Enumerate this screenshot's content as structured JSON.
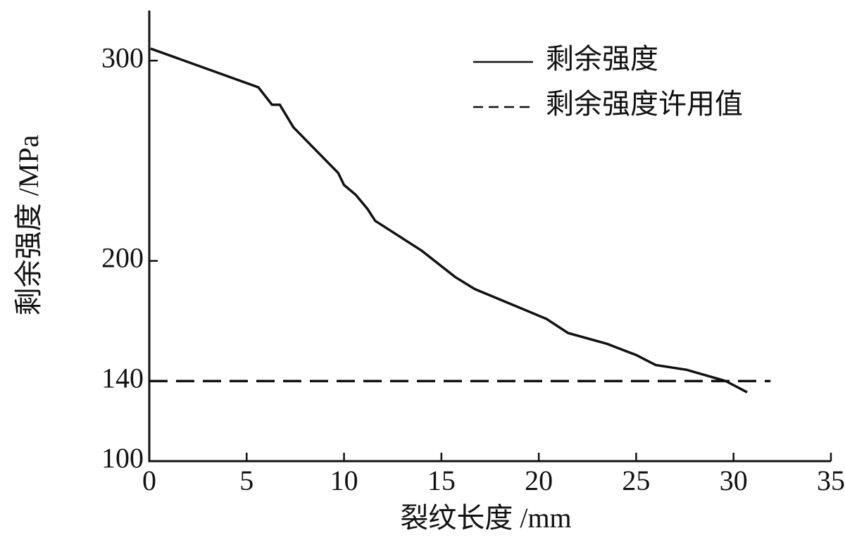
{
  "chart_data": {
    "type": "line",
    "xlabel": "裂纹长度 /mm",
    "ylabel": "剩余强度 /MPa",
    "xlim": [
      0,
      35
    ],
    "ylim": [
      100,
      325
    ],
    "xticks": [
      0,
      5,
      10,
      15,
      20,
      25,
      30,
      35
    ],
    "yticks": [
      100,
      140,
      200,
      300
    ],
    "grid": false,
    "legend": "upper right",
    "series": [
      {
        "name": "剩余强度",
        "color": "#111111",
        "linestyle": "solid",
        "x": [
          0.07,
          5.6,
          6.3,
          6.7,
          7.4,
          9.7,
          10.0,
          10.6,
          11.2,
          11.6,
          14.0,
          15.7,
          16.7,
          20.4,
          21.5,
          23.5,
          25.0,
          26.0,
          27.6,
          29.6,
          30.7
        ],
        "values": [
          306,
          286.7,
          278,
          278,
          266.7,
          243.9,
          237.9,
          233,
          226,
          220,
          205,
          192,
          186,
          171,
          164,
          158.6,
          153,
          148,
          145.6,
          140,
          134.4
        ]
      },
      {
        "name": "剩余强度许用值",
        "color": "#111111",
        "linestyle": "dashed",
        "x": [
          0,
          31.9
        ],
        "values": [
          140,
          140
        ]
      }
    ]
  }
}
